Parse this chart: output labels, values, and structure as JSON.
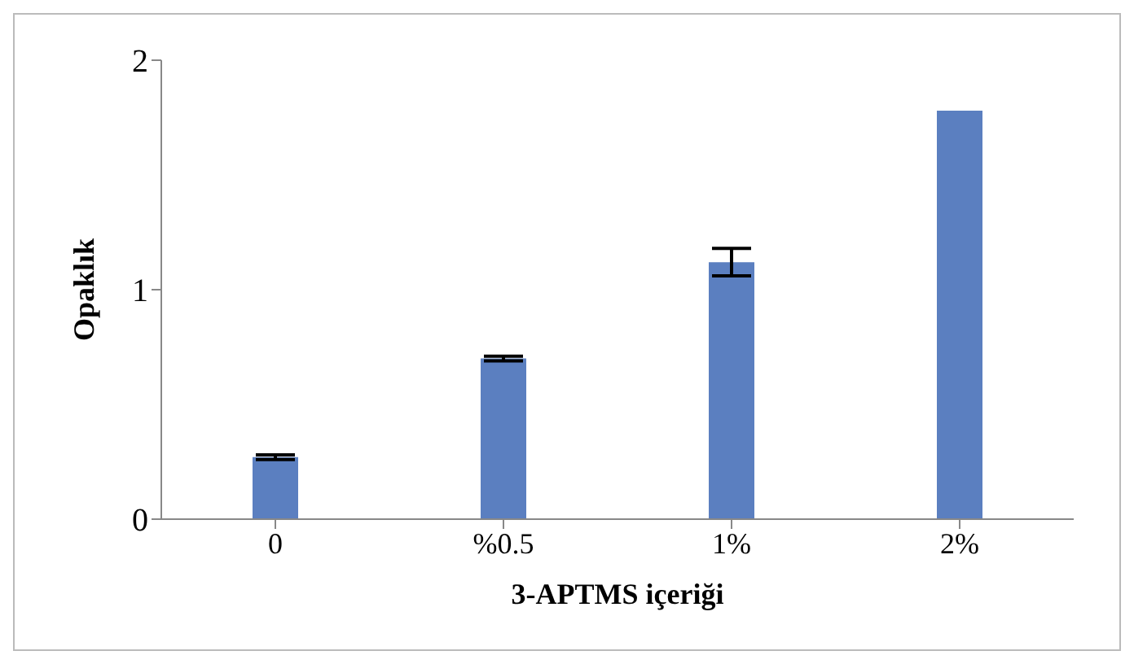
{
  "chart_data": {
    "type": "bar",
    "xlabel": "3-APTMS içeriği",
    "ylabel": "Opaklık",
    "categories": [
      "0",
      "%0.5",
      "1%",
      "2%"
    ],
    "values": [
      0.27,
      0.7,
      1.12,
      1.78
    ],
    "errors": [
      0.01,
      0.01,
      0.06,
      null
    ],
    "color": "#5b7fc0",
    "ylim": [
      0,
      2
    ],
    "yticks": [
      0,
      1,
      2
    ],
    "grid": false,
    "legend": false
  }
}
